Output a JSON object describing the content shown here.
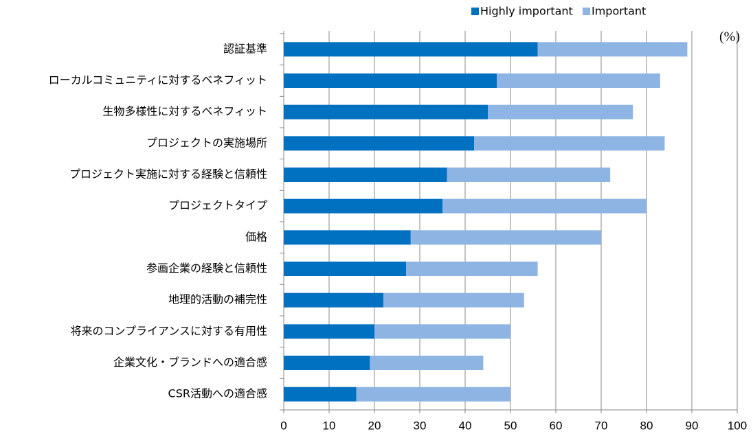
{
  "chart_data": {
    "type": "stacked-bar-horizontal",
    "categories": [
      "認証基準",
      "ローカルコミュニティに対するベネフィット",
      "生物多様性に対するベネフィット",
      "プロジェクトの実施場所",
      "プロジェクト実施に対する経験と信頼性",
      "プロジェクトタイプ",
      "価格",
      "参画企業の経験と信頼性",
      "地理的活動の補完性",
      "将来のコンプライアンスに対する有用性",
      "企業文化・ブランドへの適合感",
      "CSR活動への適合感"
    ],
    "series": [
      {
        "name": "Highly important",
        "color": "#0070c0",
        "values": [
          56,
          47,
          45,
          42,
          36,
          35,
          28,
          27,
          22,
          20,
          19,
          16
        ]
      },
      {
        "name": "Important",
        "color": "#8eb4e3",
        "values": [
          33,
          36,
          32,
          42,
          36,
          45,
          42,
          29,
          31,
          30,
          25,
          34
        ]
      }
    ],
    "xlabel": "(%)",
    "xlim": [
      0,
      100
    ],
    "xticks": [
      0,
      10,
      20,
      30,
      40,
      50,
      60,
      70,
      80,
      90,
      100
    ],
    "grid": true,
    "legend": "top"
  }
}
